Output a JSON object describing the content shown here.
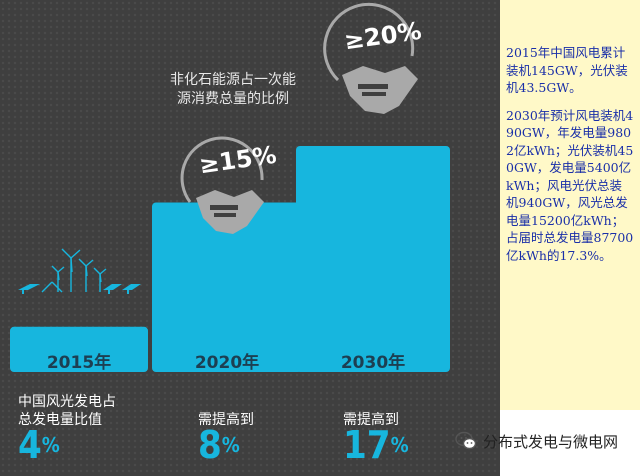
{
  "chart_data": {
    "type": "bar",
    "categories": [
      "2015年",
      "2020年",
      "2030年"
    ],
    "values": [
      4,
      15,
      20
    ],
    "value_labels": [
      "",
      "≥15%",
      "≥20%"
    ],
    "annotation": "非化石能源占一次能源消费总量的比例",
    "ylabel": "",
    "xlabel": "",
    "grid": false,
    "bar_color": "#17b6de"
  },
  "bottom_notes": {
    "n2015_label": "中国风光发电占\n总发电量比值",
    "n2015_value": "4",
    "n2020_label": "需提高到",
    "n2020_value": "8",
    "n2030_label": "需提高到",
    "n2030_value": "17",
    "percent_sign": "%"
  },
  "side_panel": {
    "para1": "2015年中国风电累计装机145GW，光伏装机43.5GW。",
    "para2": "2030年预计风电装机490GW，年发电量9802亿kWh；光伏装机450GW，发电量5400亿kWh；风电光伏总装机940GW，风光总发电量15200亿kWh；占届时总发电量87700亿kWh的17.3%。"
  },
  "watermark": {
    "text": "分布式发电与微电网"
  },
  "icons": [
    "handshake-icon",
    "wind-turbine-icon",
    "solar-panel-icon",
    "wechat-icon"
  ]
}
